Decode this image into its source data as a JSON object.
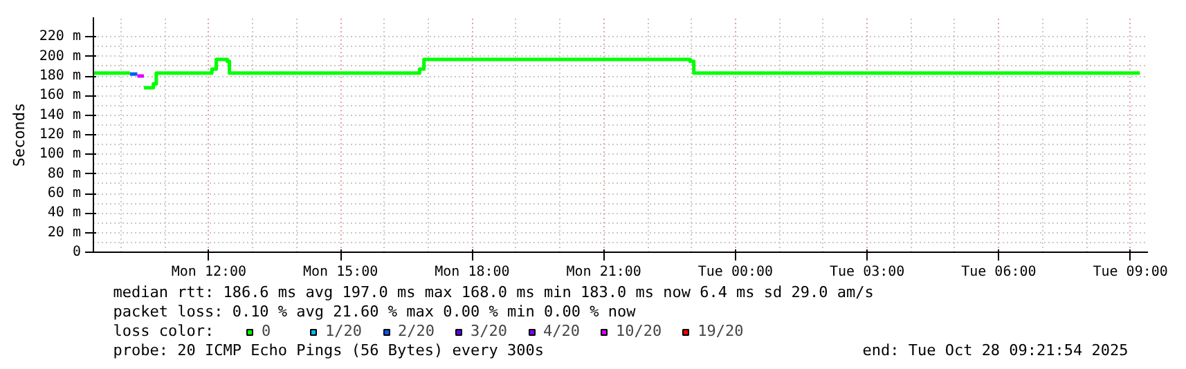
{
  "chart_data": {
    "type": "step",
    "ylabel": "Seconds",
    "legend_title": "loss color:",
    "legend": "bottom",
    "grid": true,
    "line_style": "solid",
    "marker": "none",
    "xlim": [
      "2025-10-27T09:22",
      "2025-10-28T09:24"
    ],
    "xticks": [
      {
        "value": "2025-10-27T12:00",
        "label": "Mon 12:00"
      },
      {
        "value": "2025-10-27T15:00",
        "label": "Mon 15:00"
      },
      {
        "value": "2025-10-27T18:00",
        "label": "Mon 18:00"
      },
      {
        "value": "2025-10-27T21:00",
        "label": "Mon 21:00"
      },
      {
        "value": "2025-10-28T00:00",
        "label": "Tue 00:00"
      },
      {
        "value": "2025-10-28T03:00",
        "label": "Tue 03:00"
      },
      {
        "value": "2025-10-28T06:00",
        "label": "Tue 06:00"
      },
      {
        "value": "2025-10-28T09:00",
        "label": "Tue 09:00"
      }
    ],
    "ylim": [
      0,
      240
    ],
    "yticks": [
      0,
      {
        "value": 20,
        "label": "20 m"
      },
      {
        "value": 40,
        "label": "40 m"
      },
      {
        "value": 60,
        "label": "60 m"
      },
      {
        "value": 80,
        "label": "80 m"
      },
      {
        "value": 100,
        "label": "100 m"
      },
      {
        "value": 120,
        "label": "120 m"
      },
      {
        "value": 140,
        "label": "140 m"
      },
      {
        "value": 160,
        "label": "160 m"
      },
      {
        "value": 180,
        "label": "180 m"
      },
      {
        "value": 200,
        "label": "200 m"
      },
      {
        "value": 220,
        "label": "220 m"
      }
    ],
    "series": [
      {
        "name": "0",
        "color": "#00ff00",
        "x": [
          "2025-10-27T09:23",
          "2025-10-27T10:12",
          "2025-10-27T10:31",
          "2025-10-27T10:44",
          "2025-10-27T10:48",
          "2025-10-27T12:04",
          "2025-10-27T12:10",
          "2025-10-27T12:25",
          "2025-10-27T12:28",
          "2025-10-27T16:48",
          "2025-10-27T16:54",
          "2025-10-27T22:58",
          "2025-10-27T23:03",
          "2025-10-28T09:13"
        ],
        "values": [
          183,
          null,
          168,
          172,
          183,
          187,
          197,
          195,
          183,
          187,
          197,
          195,
          183,
          183
        ]
      },
      {
        "name": "1/20",
        "color": "#00b8ff"
      },
      {
        "name": "2/20",
        "color": "#0059ff",
        "x": [
          "2025-10-27T10:12",
          "2025-10-27T10:22"
        ],
        "values": [
          182,
          182
        ]
      },
      {
        "name": "3/20",
        "color": "#5e00ff"
      },
      {
        "name": "4/20",
        "color": "#7e00ff"
      },
      {
        "name": "10/20",
        "color": "#dd00ff",
        "x": [
          "2025-10-27T10:22",
          "2025-10-27T10:31"
        ],
        "values": [
          180,
          180
        ]
      },
      {
        "name": "19/20",
        "color": "#ff0000"
      }
    ],
    "annotations": [
      "median rtt:  186.6 ms avg  197.0 ms max  168.0 ms min  183.0 ms now  6.4 ms sd  29.0   am/s",
      "packet loss: 0.10 % avg  21.60 % max  0.00 % min  0.00 % now",
      "probe:       20 ICMP Echo Pings (56 Bytes) every 300s",
      "end: Tue Oct 28 09:21:54 2025"
    ]
  }
}
